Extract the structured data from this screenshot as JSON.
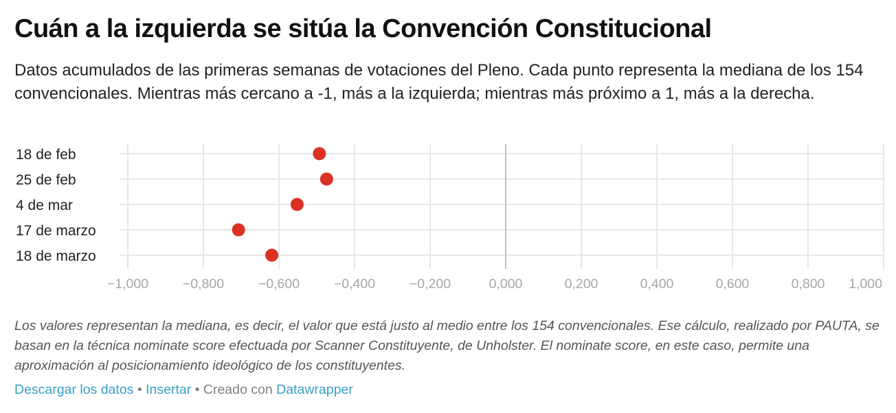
{
  "chart_data": {
    "type": "scatter",
    "title": "Cuán a la izquierda se sitúa la Convención Constitucional",
    "subtitle": "Datos acumulados de las primeras semanas de votaciones del Pleno. Cada punto representa la mediana de los 154 convencionales. Mientras más cercano a -1, más a la izquierda; mientras más próximo a 1, más a la derecha.",
    "categories": [
      "18 de feb",
      "25 de feb",
      "4 de mar",
      "17 de marzo",
      "18 de marzo"
    ],
    "values": [
      -0.493,
      -0.474,
      -0.552,
      -0.707,
      -0.619
    ],
    "xlim": [
      -1,
      1
    ],
    "ticks": [
      -1,
      -0.8,
      -0.6,
      -0.4,
      -0.2,
      0,
      0.2,
      0.4,
      0.6,
      0.8,
      1
    ],
    "tick_labels": [
      "−1,000",
      "−0,800",
      "−0,600",
      "−0,400",
      "−0,200",
      "0,000",
      "0,200",
      "0,400",
      "0,600",
      "0,800",
      "1,000"
    ],
    "xlabel": "",
    "ylabel": "",
    "grid": true,
    "marker_color": "#dc3023",
    "zero_line_color": "#bdbdbd",
    "grid_color": "#e6e6e6"
  },
  "notes": "Los valores representan la mediana, es decir, el valor que está justo al medio entre los 154 convencionales. Ese cálculo, realizado por PAUTA, se basan en la técnica nominate score efectuada por Scanner Constituyente, de Unholster. El nominate score, en este caso, permite una aproximación al posicionamiento ideológico de los constituyentes.",
  "footer": {
    "download_label": "Descargar los datos",
    "separator": "•",
    "embed_label": "Insertar",
    "created_label": "Creado con",
    "tool_label": "Datawrapper"
  }
}
